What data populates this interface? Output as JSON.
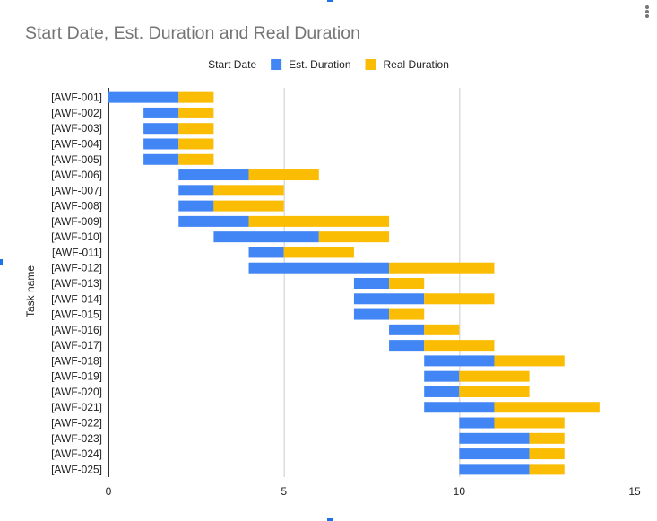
{
  "chart_data": {
    "type": "bar",
    "orientation": "horizontal",
    "stacked": true,
    "title": "Start Date, Est. Duration and Real Duration",
    "ylabel": "Task name",
    "xlabel": "",
    "xlim": [
      0,
      15
    ],
    "x_ticks": [
      0,
      5,
      10,
      15
    ],
    "grid": true,
    "legend_position": "top",
    "categories": [
      "[AWF-001]",
      "[AWF-002]",
      "[AWF-003]",
      "[AWF-004]",
      "[AWF-005]",
      "[AWF-006]",
      "[AWF-007]",
      "[AWF-008]",
      "[AWF-009]",
      "[AWF-010]",
      "[AWF-011]",
      "[AWF-012]",
      "[AWF-013]",
      "[AWF-014]",
      "[AWF-015]",
      "[AWF-016]",
      "[AWF-017]",
      "[AWF-018]",
      "[AWF-019]",
      "[AWF-020]",
      "[AWF-021]",
      "[AWF-022]",
      "[AWF-023]",
      "[AWF-024]",
      "[AWF-025]"
    ],
    "series": [
      {
        "name": "Start Date",
        "color": "none",
        "visible": false,
        "values": [
          0,
          1,
          1,
          1,
          1,
          2,
          2,
          2,
          2,
          3,
          4,
          4,
          7,
          7,
          7,
          8,
          8,
          9,
          9,
          9,
          9,
          10,
          10,
          10,
          10
        ]
      },
      {
        "name": "Est. Duration",
        "color": "#4285f4",
        "values": [
          2,
          1,
          1,
          1,
          1,
          2,
          1,
          1,
          2,
          3,
          1,
          4,
          1,
          2,
          1,
          1,
          1,
          2,
          1,
          1,
          2,
          1,
          2,
          2,
          2
        ]
      },
      {
        "name": "Real Duration",
        "color": "#fbbc04",
        "values": [
          1,
          1,
          1,
          1,
          1,
          2,
          2,
          2,
          4,
          2,
          2,
          3,
          1,
          2,
          1,
          1,
          2,
          2,
          2,
          2,
          3,
          2,
          1,
          1,
          1
        ]
      }
    ]
  },
  "icons": {
    "menu": "more-vert-icon"
  }
}
